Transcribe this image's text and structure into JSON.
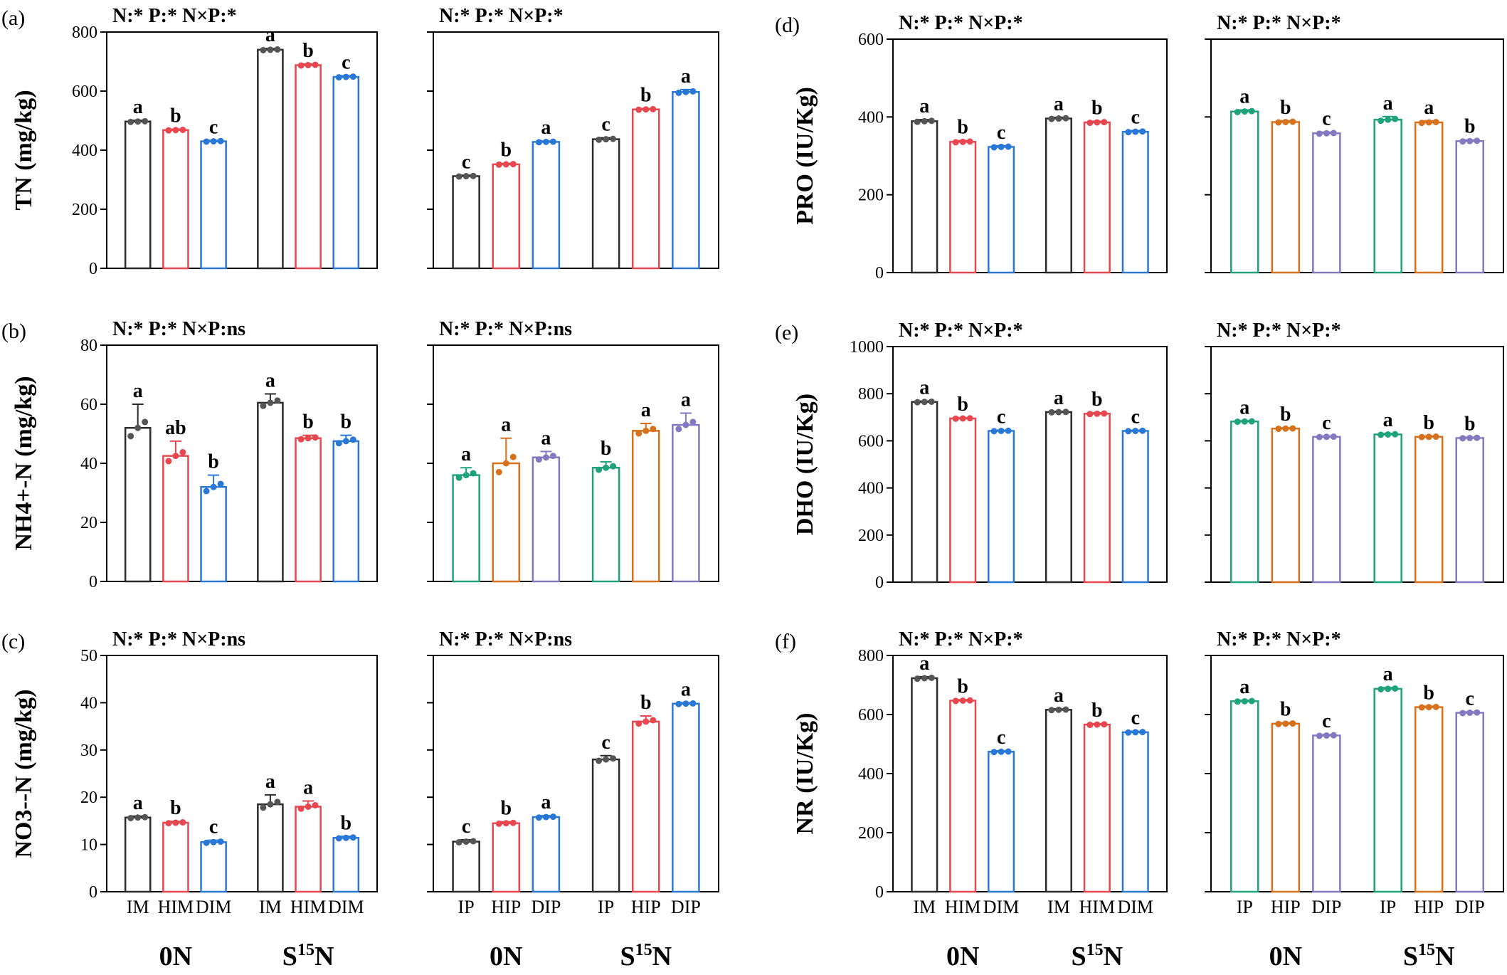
{
  "colors": {
    "black": "#2b2b2b",
    "red": "#e8474f",
    "blue": "#2a78d6",
    "green": "#1fa37a",
    "orange": "#d7711c",
    "purple": "#8478c0",
    "dot_black": "#555555",
    "dot_red": "#e8474f",
    "dot_blue": "#2a78d6",
    "dot_green": "#1fa37a",
    "dot_orange": "#d7711c",
    "dot_purple": "#8478c0"
  },
  "chart_data": [
    {
      "type": "bar",
      "panel": "(a)",
      "ylabel": "TN (mg/kg)",
      "stats": "N:* P:* N×P:*",
      "ylim": [
        0,
        800
      ],
      "yticks": [
        0,
        200,
        400,
        600,
        800
      ],
      "categories": [
        "IM",
        "HIM",
        "DIM",
        "IM",
        "HIM",
        "DIM"
      ],
      "colors": [
        "black",
        "red",
        "blue",
        "black",
        "red",
        "blue"
      ],
      "values": [
        497,
        468,
        430,
        740,
        688,
        648
      ],
      "errors": [
        4,
        3,
        3,
        4,
        4,
        4
      ],
      "letters": [
        "a",
        "b",
        "c",
        "a",
        "b",
        "c"
      ]
    },
    {
      "type": "bar",
      "panel": "",
      "ylabel": "",
      "stats": "N:* P:* N×P:*",
      "ylim": [
        0,
        800
      ],
      "yticks": [
        0,
        200,
        400,
        600,
        800
      ],
      "categories": [
        "IP",
        "HIP",
        "DIP",
        "IP",
        "HIP",
        "DIP"
      ],
      "colors": [
        "black",
        "red",
        "blue",
        "black",
        "red",
        "blue"
      ],
      "values": [
        312,
        352,
        428,
        437,
        538,
        597
      ],
      "errors": [
        3,
        3,
        3,
        5,
        3,
        8
      ],
      "letters": [
        "c",
        "b",
        "a",
        "c",
        "b",
        "a"
      ]
    },
    {
      "type": "bar",
      "panel": "(b)",
      "ylabel": "NH4+-N (mg/kg)",
      "stats": "N:* P:* N×P:ns",
      "ylim": [
        0,
        80
      ],
      "yticks": [
        0,
        20,
        40,
        60,
        80
      ],
      "categories": [
        "IM",
        "HIM",
        "DIM",
        "IM",
        "HIM",
        "DIM"
      ],
      "colors": [
        "black",
        "red",
        "blue",
        "black",
        "red",
        "blue"
      ],
      "values": [
        52,
        42.5,
        32,
        60.5,
        48.5,
        47.5
      ],
      "errors": [
        8,
        5,
        4,
        3,
        1,
        2
      ],
      "letters": [
        "a",
        "ab",
        "b",
        "a",
        "b",
        "b"
      ]
    },
    {
      "type": "bar",
      "panel": "",
      "ylabel": "",
      "stats": "N:* P:* N×P:ns",
      "ylim": [
        0,
        80
      ],
      "yticks": [
        0,
        20,
        40,
        60,
        80
      ],
      "categories": [
        "IP",
        "HIP",
        "DIP",
        "IP",
        "HIP",
        "DIP"
      ],
      "colors": [
        "green",
        "orange",
        "purple",
        "green",
        "orange",
        "purple"
      ],
      "values": [
        36,
        40,
        42,
        38.5,
        51,
        53
      ],
      "errors": [
        2.5,
        8.5,
        2,
        2,
        2.5,
        4
      ],
      "letters": [
        "a",
        "a",
        "a",
        "b",
        "a",
        "a"
      ]
    },
    {
      "type": "bar",
      "panel": "(c)",
      "ylabel": "NO3--N (mg/kg)",
      "stats": "N:* P:* N×P:ns",
      "ylim": [
        0,
        50
      ],
      "yticks": [
        0,
        10,
        20,
        30,
        40,
        50
      ],
      "categories": [
        "IM",
        "HIM",
        "DIM",
        "IM",
        "HIM",
        "DIM"
      ],
      "colors": [
        "black",
        "red",
        "blue",
        "black",
        "red",
        "blue"
      ],
      "values": [
        15.7,
        14.6,
        10.5,
        18.5,
        18,
        11.4
      ],
      "errors": [
        0.3,
        0.3,
        0.4,
        2,
        1.2,
        0.3
      ],
      "letters": [
        "a",
        "b",
        "c",
        "a",
        "a",
        "b"
      ]
    },
    {
      "type": "bar",
      "panel": "",
      "ylabel": "",
      "stats": "N:* P:* N×P:ns",
      "ylim": [
        0,
        50
      ],
      "yticks": [
        0,
        10,
        20,
        30,
        40,
        50
      ],
      "categories": [
        "IP",
        "HIP",
        "DIP",
        "IP",
        "HIP",
        "DIP"
      ],
      "colors": [
        "black",
        "red",
        "blue",
        "black",
        "red",
        "blue"
      ],
      "values": [
        10.6,
        14.5,
        15.8,
        28,
        36,
        39.8
      ],
      "errors": [
        0.4,
        0.3,
        0.3,
        0.8,
        1.2,
        0.2
      ],
      "letters": [
        "c",
        "b",
        "a",
        "c",
        "b",
        "a"
      ]
    },
    {
      "type": "bar",
      "panel": "(d)",
      "ylabel": "PRO (IU/Kg)",
      "stats": "N:* P:* N×P:*",
      "ylim": [
        0,
        600
      ],
      "yticks": [
        0,
        200,
        400,
        600
      ],
      "categories": [
        "IM",
        "HIM",
        "DIM",
        "IM",
        "HIM",
        "DIM"
      ],
      "colors": [
        "black",
        "red",
        "blue",
        "black",
        "red",
        "blue"
      ],
      "values": [
        389,
        336,
        323,
        396,
        386,
        362
      ],
      "errors": [
        4,
        3,
        3,
        3,
        3,
        3
      ],
      "letters": [
        "a",
        "b",
        "c",
        "a",
        "b",
        "c"
      ]
    },
    {
      "type": "bar",
      "panel": "",
      "ylabel": "",
      "stats": "N:* P:* N×P:*",
      "ylim": [
        0,
        600
      ],
      "yticks": [
        0,
        200,
        400,
        600
      ],
      "categories": [
        "IP",
        "HIP",
        "DIP",
        "IP",
        "HIP",
        "DIP"
      ],
      "colors": [
        "green",
        "orange",
        "purple",
        "green",
        "orange",
        "purple"
      ],
      "values": [
        414,
        387,
        358,
        393,
        386,
        338
      ],
      "errors": [
        4,
        3,
        3,
        8,
        4,
        3
      ],
      "letters": [
        "a",
        "b",
        "c",
        "a",
        "a",
        "b"
      ]
    },
    {
      "type": "bar",
      "panel": "(e)",
      "ylabel": "DHO (IU/Kg)",
      "stats": "N:* P:* N×P:*",
      "ylim": [
        0,
        1000
      ],
      "yticks": [
        0,
        200,
        400,
        600,
        800,
        1000
      ],
      "categories": [
        "IM",
        "HIM",
        "DIM",
        "IM",
        "HIM",
        "DIM"
      ],
      "colors": [
        "black",
        "red",
        "blue",
        "black",
        "red",
        "blue"
      ],
      "values": [
        765,
        695,
        642,
        722,
        715,
        642
      ],
      "errors": [
        4,
        3,
        3,
        3,
        4,
        3
      ],
      "letters": [
        "a",
        "b",
        "c",
        "a",
        "b",
        "c"
      ]
    },
    {
      "type": "bar",
      "panel": "",
      "ylabel": "",
      "stats": "N:* P:* N×P:*",
      "ylim": [
        0,
        1000
      ],
      "yticks": [
        0,
        200,
        400,
        600,
        800,
        1000
      ],
      "categories": [
        "IP",
        "HIP",
        "DIP",
        "IP",
        "HIP",
        "DIP"
      ],
      "colors": [
        "green",
        "orange",
        "purple",
        "green",
        "orange",
        "purple"
      ],
      "values": [
        682,
        652,
        617,
        627,
        617,
        612
      ],
      "errors": [
        3,
        3,
        3,
        4,
        3,
        3
      ],
      "letters": [
        "a",
        "b",
        "c",
        "a",
        "b",
        "b"
      ]
    },
    {
      "type": "bar",
      "panel": "(f)",
      "ylabel": "NR (IU/Kg)",
      "stats": "N:* P:* N×P:*",
      "ylim": [
        0,
        800
      ],
      "yticks": [
        0,
        200,
        400,
        600,
        800
      ],
      "categories": [
        "IM",
        "HIM",
        "DIM",
        "IM",
        "HIM",
        "DIM"
      ],
      "colors": [
        "black",
        "red",
        "blue",
        "black",
        "red",
        "blue"
      ],
      "values": [
        723,
        647,
        474,
        616,
        566,
        540
      ],
      "errors": [
        5,
        3,
        3,
        3,
        3,
        3
      ],
      "letters": [
        "a",
        "b",
        "c",
        "a",
        "b",
        "c"
      ]
    },
    {
      "type": "bar",
      "panel": "",
      "ylabel": "",
      "stats": "N:* P:* N×P:*",
      "ylim": [
        0,
        800
      ],
      "yticks": [
        0,
        200,
        400,
        600,
        800
      ],
      "categories": [
        "IP",
        "HIP",
        "DIP",
        "IP",
        "HIP",
        "DIP"
      ],
      "colors": [
        "green",
        "orange",
        "purple",
        "green",
        "orange",
        "purple"
      ],
      "values": [
        645,
        569,
        529,
        687,
        625,
        606
      ],
      "errors": [
        3,
        3,
        3,
        4,
        3,
        3
      ],
      "letters": [
        "a",
        "b",
        "c",
        "a",
        "b",
        "c"
      ]
    }
  ],
  "groups": [
    "0N",
    "S15N"
  ],
  "groups_parts": {
    "S": "S",
    "sup": "15",
    "N": "N"
  }
}
